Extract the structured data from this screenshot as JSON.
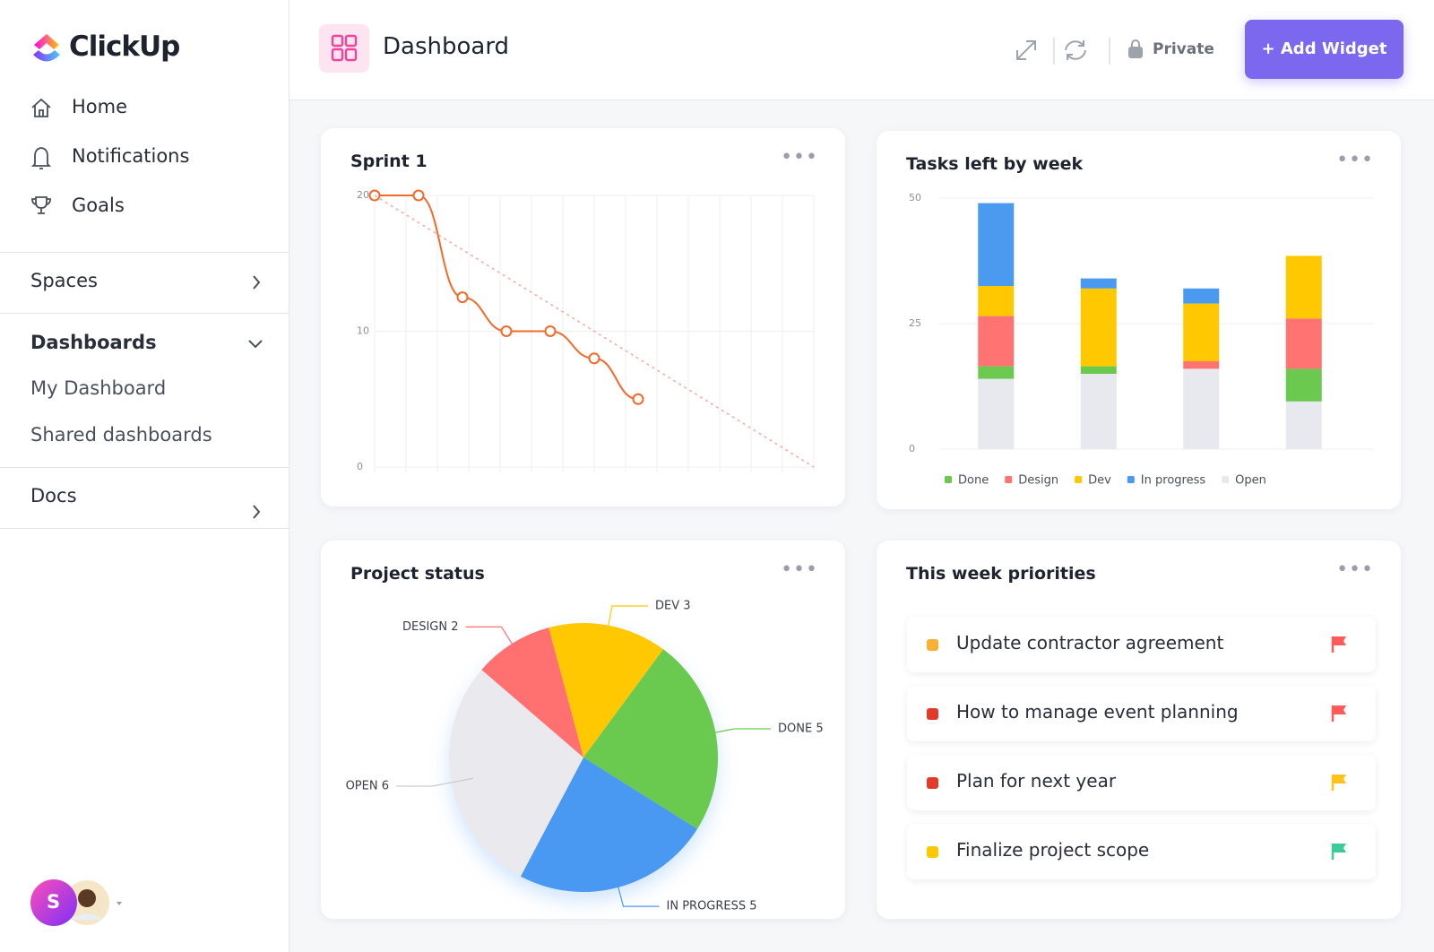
{
  "sidebar": {
    "logo": "ClickUp",
    "nav": [
      "Home",
      "Notifications",
      "Goals"
    ],
    "spaces": "Spaces",
    "dashboards": "Dashboards",
    "dashboard_items": [
      "My Dashboard",
      "Shared dashboards"
    ],
    "docs": "Docs",
    "avatar": "S"
  },
  "header": {
    "title": "Dashboard",
    "privacy": "Private",
    "button": "+ Add Widget"
  },
  "chart_data": [
    {
      "type": "line",
      "title": "Sprint 1",
      "x": [
        0,
        1,
        2,
        3,
        4,
        5,
        6
      ],
      "xlim": [
        0,
        10
      ],
      "ylim": [
        0,
        20
      ],
      "yticks": [
        0,
        10,
        20
      ],
      "grid": true,
      "series": [
        {
          "color": "#f26a2a",
          "values": [
            20,
            20,
            12.5,
            10,
            10,
            8,
            5
          ]
        },
        {
          "color": "#f6a999",
          "dashed": true,
          "x": [
            0,
            10
          ],
          "values": [
            20,
            0
          ]
        }
      ]
    },
    {
      "type": "stacked-bar",
      "title": "Tasks left by week",
      "categories": [
        null,
        null,
        null,
        null
      ],
      "ylim": [
        0,
        50
      ],
      "yticks": [
        0,
        25,
        50
      ],
      "grid": true,
      "series": [
        {
          "name": "Done",
          "color": "#6bc950",
          "values": [
            2.5,
            1.5,
            0,
            6.5
          ]
        },
        {
          "name": "Design",
          "color": "#ff7373",
          "values": [
            10,
            0,
            1.5,
            10
          ]
        },
        {
          "name": "Dev",
          "color": "#ffc800",
          "values": [
            6,
            15.5,
            11.5,
            12.5
          ]
        },
        {
          "name": "In progress",
          "color": "#4a9af0",
          "values": [
            16.5,
            2,
            3,
            0
          ]
        },
        {
          "name": "Open",
          "color": "#e8e9ef",
          "values": [
            14,
            15,
            16,
            9.5
          ]
        }
      ]
    },
    {
      "type": "pie",
      "title": "Project status",
      "values": [
        3,
        5,
        5,
        6,
        2
      ],
      "value_labels": [
        "DEV 3",
        "DONE 5",
        "IN PROGRESS 5",
        "OPEN 6",
        "DESIGN 2"
      ],
      "colors": [
        "#ffc800",
        "#6bc950",
        "#4a98f2",
        "#e9e9ee",
        "#ff7070"
      ]
    }
  ],
  "priorities": {
    "title": "This week priorities",
    "items": [
      {
        "text": "Update contractor agreement",
        "dot": "#f8b133",
        "flag": "#ff5a5a"
      },
      {
        "text": "How to manage event planning",
        "dot": "#e23b2a",
        "flag": "#ff5a5a"
      },
      {
        "text": "Plan for next year",
        "dot": "#e23b2a",
        "flag": "#ffc21a"
      },
      {
        "text": "Finalize project scope",
        "dot": "#ffc800",
        "flag": "#3ecb9b"
      }
    ]
  }
}
